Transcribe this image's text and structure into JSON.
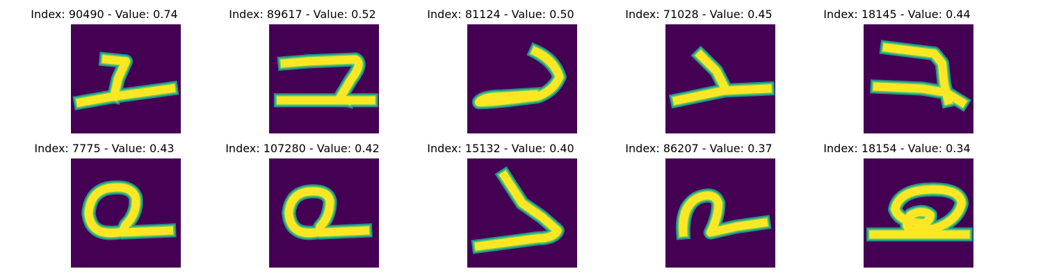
{
  "colors": {
    "background": "#440154",
    "stroke_outer": "#21918c",
    "stroke_mid": "#5ec962",
    "stroke_core": "#fde725"
  },
  "panels": [
    {
      "title": "Index: 90490 - Value: 0.74",
      "glyph": "digit-one-like"
    },
    {
      "title": "Index: 89617 - Value: 0.52",
      "glyph": "digit-two-like"
    },
    {
      "title": "Index: 81124 - Value: 0.50",
      "glyph": "hook-stroke"
    },
    {
      "title": "Index: 71028 - Value: 0.45",
      "glyph": "angle-stroke"
    },
    {
      "title": "Index: 18145 - Value: 0.44",
      "glyph": "digit-two-like"
    },
    {
      "title": "Index: 7775 - Value: 0.43",
      "glyph": "digit-two-loop"
    },
    {
      "title": "Index: 107280 - Value: 0.42",
      "glyph": "digit-two-loop"
    },
    {
      "title": "Index: 15132 - Value: 0.40",
      "glyph": "angle-stroke"
    },
    {
      "title": "Index: 86207 - Value: 0.37",
      "glyph": "digit-two-like"
    },
    {
      "title": "Index: 18154 - Value: 0.34",
      "glyph": "digit-two-loop"
    }
  ]
}
